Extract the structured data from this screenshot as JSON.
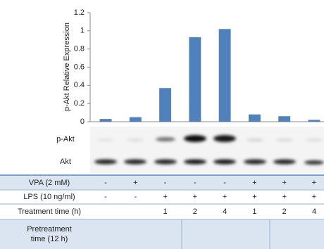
{
  "chart_data": {
    "type": "bar",
    "ylabel": "p-Akt Relative Expression",
    "values": [
      0.03,
      0.05,
      0.37,
      0.93,
      1.02,
      0.08,
      0.06,
      0.02
    ],
    "color": "#4f81bd",
    "ylim": [
      0,
      1.2
    ],
    "yticks": [
      0,
      0.2,
      0.4,
      0.6,
      0.8,
      1,
      1.2
    ],
    "grid": false
  },
  "blot": {
    "rows": [
      "p-Akt",
      "Akt"
    ]
  },
  "table": {
    "rows": [
      {
        "label": "VPA (2 mM)",
        "cells": [
          "-",
          "+",
          "-",
          "-",
          "-",
          "+",
          "+",
          "+"
        ]
      },
      {
        "label": "LPS (10 ng/ml)",
        "cells": [
          "-",
          "-",
          "+",
          "+",
          "+",
          "+",
          "+",
          "+"
        ]
      },
      {
        "label": "Treatment time (h)",
        "cells": [
          null,
          null,
          1,
          2,
          4,
          1,
          2,
          4
        ]
      },
      {
        "label": [
          "Pretreatment",
          "time (12 h)"
        ]
      }
    ]
  }
}
